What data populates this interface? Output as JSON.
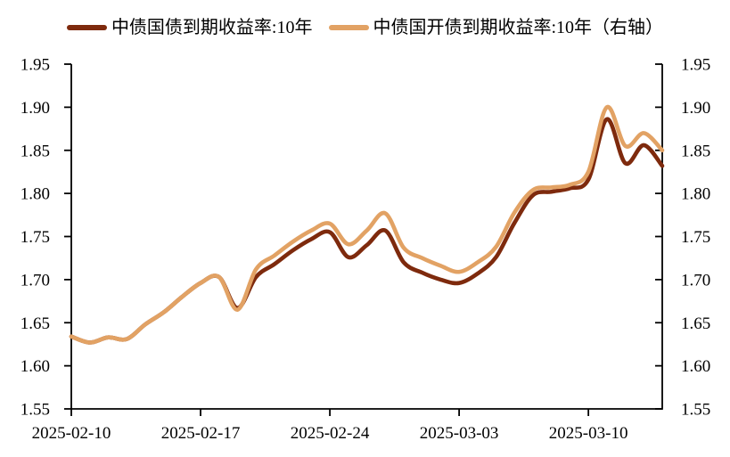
{
  "legend": {
    "items": [
      {
        "label": "中债国债到期收益率:10年",
        "color": "#7E2A0D"
      },
      {
        "label": "中债国开债到期收益率:10年（右轴）",
        "color": "#E2A264"
      }
    ]
  },
  "axes": {
    "y_left_ticks": [
      "1.95",
      "1.90",
      "1.85",
      "1.80",
      "1.75",
      "1.70",
      "1.65",
      "1.60",
      "1.55"
    ],
    "y_right_ticks": [
      "1.95",
      "1.90",
      "1.85",
      "1.80",
      "1.75",
      "1.70",
      "1.65",
      "1.60",
      "1.55"
    ],
    "x_ticks": [
      "2025-02-10",
      "2025-02-17",
      "2025-02-24",
      "2025-03-03",
      "2025-03-10"
    ]
  },
  "chart_data": {
    "type": "line",
    "title": "",
    "x": [
      "2025-02-10",
      "2025-02-11",
      "2025-02-12",
      "2025-02-13",
      "2025-02-14",
      "2025-02-15",
      "2025-02-16",
      "2025-02-17",
      "2025-02-18",
      "2025-02-19",
      "2025-02-20",
      "2025-02-21",
      "2025-02-22",
      "2025-02-23",
      "2025-02-24",
      "2025-02-25",
      "2025-02-26",
      "2025-02-27",
      "2025-02-28",
      "2025-03-01",
      "2025-03-02",
      "2025-03-03",
      "2025-03-04",
      "2025-03-05",
      "2025-03-06",
      "2025-03-07",
      "2025-03-08",
      "2025-03-09",
      "2025-03-10",
      "2025-03-11",
      "2025-03-12",
      "2025-03-13",
      "2025-03-14"
    ],
    "x_tick_labels": [
      "2025-02-10",
      "2025-02-17",
      "2025-02-24",
      "2025-03-03",
      "2025-03-10"
    ],
    "x_tick_day_offsets": [
      0,
      7,
      14,
      21,
      28
    ],
    "series": [
      {
        "name": "中债国债到期收益率:10年",
        "axis": "left",
        "color": "#7E2A0D",
        "values": [
          1.634,
          1.627,
          1.633,
          1.631,
          1.648,
          1.662,
          1.68,
          1.696,
          1.703,
          1.667,
          1.703,
          1.718,
          1.734,
          1.747,
          1.755,
          1.726,
          1.74,
          1.757,
          1.72,
          1.708,
          1.7,
          1.696,
          1.707,
          1.726,
          1.766,
          1.798,
          1.802,
          1.806,
          1.816,
          1.886,
          1.835,
          1.856,
          1.832
        ]
      },
      {
        "name": "中债国开债到期收益率:10年（右轴）",
        "axis": "right",
        "color": "#E2A264",
        "values": [
          1.634,
          1.627,
          1.633,
          1.631,
          1.648,
          1.662,
          1.68,
          1.696,
          1.703,
          1.665,
          1.712,
          1.728,
          1.744,
          1.757,
          1.765,
          1.741,
          1.757,
          1.777,
          1.737,
          1.725,
          1.716,
          1.709,
          1.72,
          1.738,
          1.778,
          1.804,
          1.807,
          1.81,
          1.825,
          1.9,
          1.855,
          1.87,
          1.85
        ]
      }
    ],
    "y_left_range": [
      1.55,
      1.95
    ],
    "y_right_range": [
      1.55,
      1.95
    ],
    "y_step": 0.05,
    "grid": false,
    "legend_position": "top"
  }
}
